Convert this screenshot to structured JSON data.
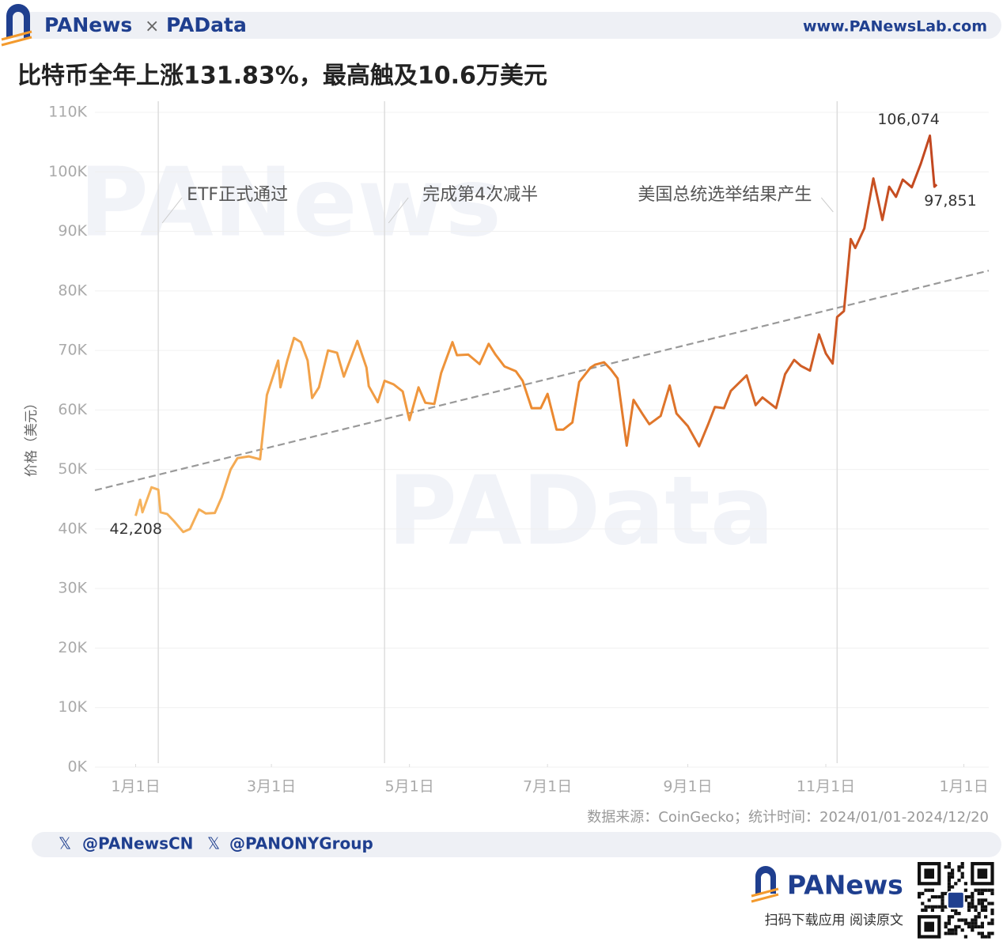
{
  "header": {
    "brand_left": "PANews",
    "cross": "×",
    "brand_right": "PAData",
    "url": "www.PANewsLab.com"
  },
  "chart_data": {
    "type": "line",
    "title": "比特币全年上涨131.83%，最高触及10.6万美元",
    "y_label": "价格（美元）",
    "source": "数据来源：CoinGecko；统计时间：2024/01/01-2024/12/20",
    "xlim": [
      -18,
      377
    ],
    "xticks": [
      {
        "value": 0,
        "label": "1月1日"
      },
      {
        "value": 60,
        "label": "3月1日"
      },
      {
        "value": 121,
        "label": "5月1日"
      },
      {
        "value": 182,
        "label": "7月1日"
      },
      {
        "value": 244,
        "label": "9月1日"
      },
      {
        "value": 305,
        "label": "11月1日"
      },
      {
        "value": 366,
        "label": "1月1日"
      }
    ],
    "ylim": [
      0,
      110000
    ],
    "yticks": [
      {
        "value": 0,
        "label": "0K"
      },
      {
        "value": 10000,
        "label": "10K"
      },
      {
        "value": 20000,
        "label": "20K"
      },
      {
        "value": 30000,
        "label": "30K"
      },
      {
        "value": 40000,
        "label": "40K"
      },
      {
        "value": 50000,
        "label": "50K"
      },
      {
        "value": 60000,
        "label": "60K"
      },
      {
        "value": 70000,
        "label": "70K"
      },
      {
        "value": 80000,
        "label": "80K"
      },
      {
        "value": 90000,
        "label": "90K"
      },
      {
        "value": 100000,
        "label": "100K"
      },
      {
        "value": 110000,
        "label": "110K"
      }
    ],
    "grid": true,
    "colors": [
      "#f6b45e",
      "#ec8a30",
      "#c0441f"
    ],
    "x": [
      0,
      2,
      3,
      7,
      10,
      11,
      14,
      17,
      21,
      24,
      28,
      31,
      35,
      38,
      42,
      45,
      50,
      55,
      58,
      63,
      64,
      67,
      70,
      73,
      76,
      78,
      81,
      85,
      89,
      92,
      98,
      102,
      103,
      107,
      110,
      114,
      118,
      121,
      125,
      128,
      132,
      135,
      140,
      142,
      147,
      152,
      156,
      159,
      163,
      168,
      171,
      175,
      179,
      182,
      186,
      189,
      193,
      196,
      201,
      203,
      207,
      210,
      213,
      217,
      220,
      224,
      227,
      232,
      236,
      239,
      244,
      249,
      253,
      256,
      260,
      263,
      270,
      274,
      277,
      283,
      287,
      291,
      294,
      298,
      302,
      305,
      308,
      310,
      313,
      316,
      318,
      322,
      326,
      330,
      333,
      336,
      339,
      343,
      347,
      351,
      353,
      354
    ],
    "values": [
      42208,
      44900,
      42800,
      47000,
      46600,
      42800,
      42500,
      41300,
      39500,
      40000,
      43300,
      42600,
      42700,
      45300,
      50000,
      51900,
      52200,
      51700,
      62500,
      68300,
      63800,
      68300,
      72100,
      71400,
      68300,
      62000,
      63800,
      70000,
      69600,
      65600,
      71600,
      67100,
      64000,
      61300,
      64900,
      64300,
      63100,
      58300,
      63800,
      61200,
      61000,
      66200,
      71400,
      69200,
      69300,
      67700,
      71100,
      69300,
      67300,
      66500,
      64900,
      60300,
      60300,
      62700,
      56700,
      56700,
      57900,
      64700,
      67100,
      67600,
      68000,
      66800,
      65300,
      54000,
      61700,
      59300,
      57600,
      59000,
      64100,
      59400,
      57300,
      53900,
      57600,
      60500,
      60300,
      63200,
      65800,
      60800,
      62100,
      60300,
      66000,
      68400,
      67400,
      66600,
      72700,
      69500,
      67800,
      75600,
      76600,
      88700,
      87200,
      90500,
      98900,
      91900,
      97500,
      95800,
      98700,
      97400,
      101400,
      106074,
      97500,
      97851
    ],
    "value_labels": [
      "42,208",
      null,
      null,
      null,
      null,
      null,
      null,
      null,
      null,
      null,
      null,
      null,
      null,
      null,
      null,
      null,
      null,
      null,
      null,
      null,
      null,
      null,
      null,
      null,
      null,
      null,
      null,
      null,
      null,
      null,
      null,
      null,
      null,
      null,
      null,
      null,
      null,
      null,
      null,
      null,
      null,
      null,
      null,
      null,
      null,
      null,
      null,
      null,
      null,
      null,
      null,
      null,
      null,
      null,
      null,
      null,
      null,
      null,
      null,
      null,
      null,
      null,
      null,
      null,
      null,
      null,
      null,
      null,
      null,
      null,
      null,
      null,
      null,
      null,
      null,
      null,
      null,
      null,
      null,
      null,
      null,
      null,
      null,
      null,
      null,
      null,
      null,
      null,
      null,
      null,
      null,
      null,
      null,
      null,
      null,
      null,
      null,
      null,
      null,
      "106,074",
      null,
      "97,851"
    ],
    "trendline": {
      "x": [
        -18,
        377
      ],
      "values": [
        46500,
        83400
      ],
      "color": "#999999"
    },
    "events": [
      {
        "x": 10,
        "label": "ETF正式通过"
      },
      {
        "x": 110,
        "label": "完成第4次减半"
      },
      {
        "x": 310,
        "label": "美国总统选举结果产生"
      }
    ],
    "watermarks": [
      "PANews",
      "PAData"
    ]
  },
  "footer": {
    "handles": [
      "@PANewsCN",
      "@PANONYGroup"
    ],
    "brand": "PANews",
    "cta": "扫码下载应用  阅读原文"
  }
}
